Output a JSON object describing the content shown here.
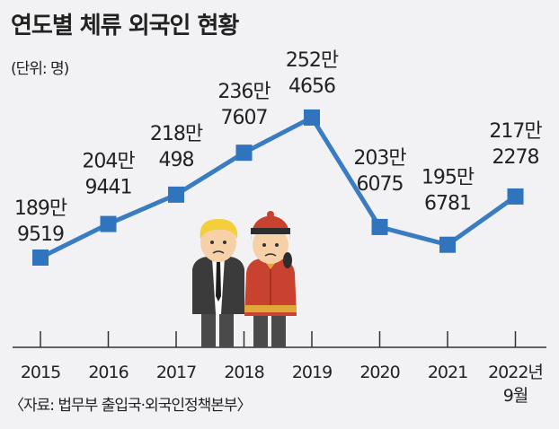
{
  "title": "연도별 체류 외국인 현황",
  "unit_note": "(단위: 명)",
  "source": "〈자료: 법무부 출입국·외국인정책본부〉",
  "colors": {
    "line": "#3a7cc2",
    "marker": "#2f74bd",
    "axis": "#333333",
    "background": "#f2f1f3"
  },
  "chart_data": {
    "type": "line",
    "title": "연도별 체류 외국인 현황",
    "ylabel": "(단위: 명)",
    "categories": [
      "2015",
      "2016",
      "2017",
      "2018",
      "2019",
      "2020",
      "2021",
      "2022년 9월"
    ],
    "tick_labels": [
      [
        "2015"
      ],
      [
        "2016"
      ],
      [
        "2017"
      ],
      [
        "2018"
      ],
      [
        "2019"
      ],
      [
        "2020"
      ],
      [
        "2021"
      ],
      [
        "2022년",
        "9월"
      ]
    ],
    "values": [
      1899519,
      2049441,
      2180498,
      2367607,
      2524656,
      2036075,
      1956781,
      2172278
    ],
    "value_labels": [
      [
        "189만",
        "9519"
      ],
      [
        "204만",
        "9441"
      ],
      [
        "218만",
        "498"
      ],
      [
        "236만",
        "7607"
      ],
      [
        "252만",
        "4656"
      ],
      [
        "203만",
        "6075"
      ],
      [
        "195만",
        "6781"
      ],
      [
        "217만",
        "2278"
      ]
    ],
    "grid": false,
    "legend": "none"
  }
}
